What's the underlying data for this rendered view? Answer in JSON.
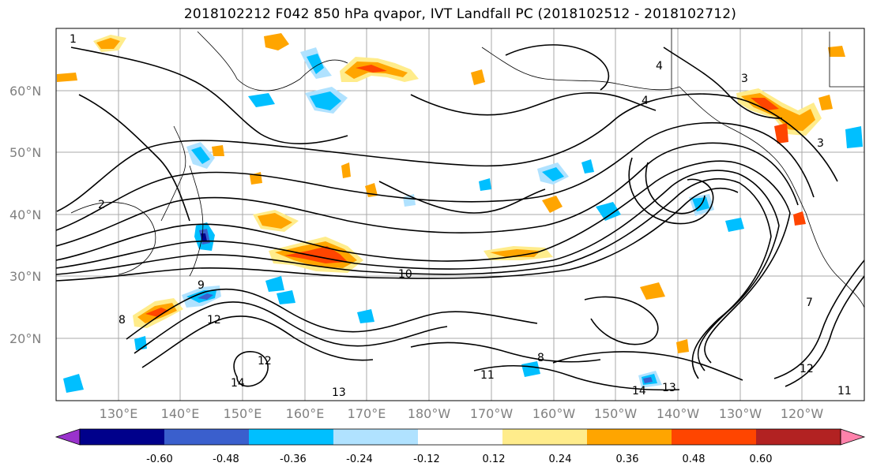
{
  "title": "2018102212 F042 850 hPa qvapor, IVT Landfall PC (2018102512 - 2018102712)",
  "map": {
    "lat_labels": [
      "60°N",
      "50°N",
      "40°N",
      "30°N",
      "20°N"
    ],
    "lon_labels": [
      "130°E",
      "140°E",
      "150°E",
      "160°E",
      "170°E",
      "180°W",
      "170°W",
      "160°W",
      "150°W",
      "140°W",
      "130°W",
      "120°W"
    ],
    "contour_labels": [
      "1",
      "4",
      "3",
      "4",
      "10",
      "9",
      "8",
      "12",
      "12",
      "14",
      "13",
      "11",
      "13",
      "14",
      "12",
      "11",
      "7",
      "8",
      "2",
      "3"
    ]
  },
  "colorbar": {
    "colors": [
      "#9932cc",
      "#00008b",
      "#3a5fcd",
      "#00bfff",
      "#b0e2ff",
      "#ffffff",
      "#ffec8b",
      "#ffa500",
      "#ff4500",
      "#b22222",
      "#ff82ab"
    ],
    "tick_labels": [
      "-0.60",
      "-0.48",
      "-0.36",
      "-0.24",
      "-0.12",
      "0.12",
      "0.24",
      "0.36",
      "0.48",
      "0.60"
    ]
  }
}
